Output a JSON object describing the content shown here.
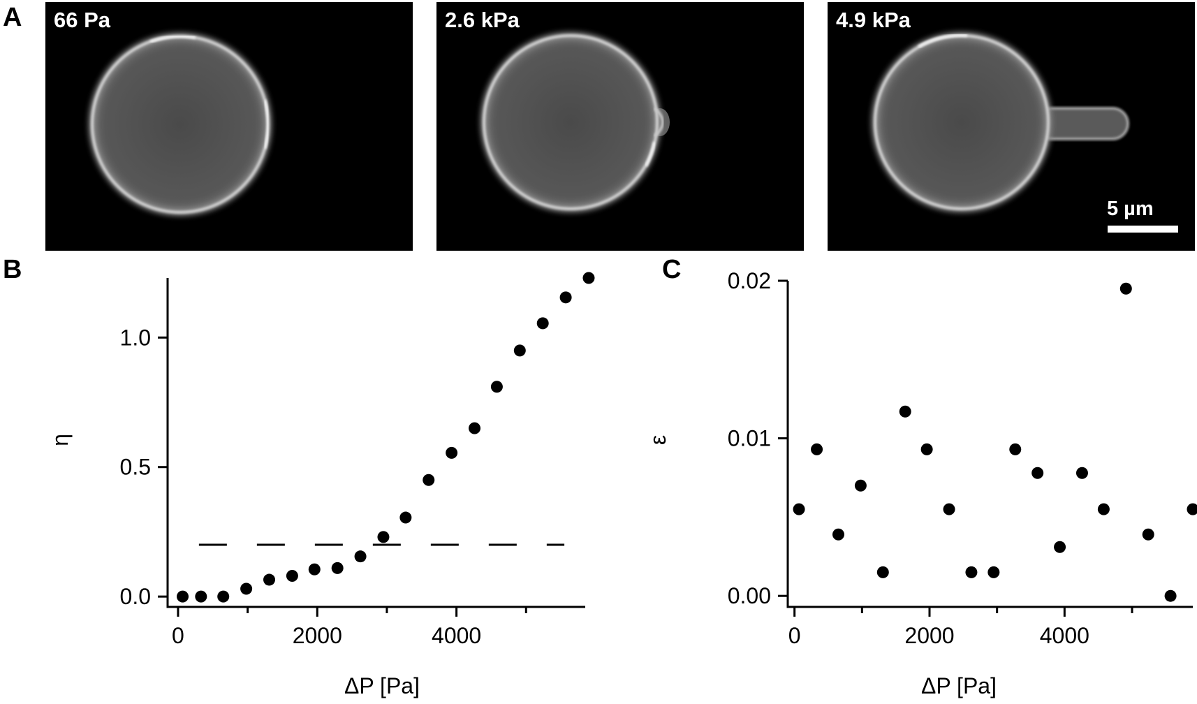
{
  "panel_letters": {
    "a": "A",
    "b": "B",
    "c": "C"
  },
  "micrographs": [
    {
      "label": "66 Pa"
    },
    {
      "label": "2.6 kPa"
    },
    {
      "label": "4.9 kPa"
    }
  ],
  "scale_bar": {
    "label": "5 µm"
  },
  "chart_data": [
    {
      "type": "scatter",
      "panel": "B",
      "xlabel": "ΔP [Pa]",
      "ylabel": "η",
      "xlim": [
        -150,
        5850
      ],
      "ylim": [
        -0.04,
        1.23
      ],
      "xticks": [
        0,
        2000,
        4000
      ],
      "xticks_minor": [
        1000,
        3000,
        5000
      ],
      "yticks": [
        0.0,
        0.5,
        1.0
      ],
      "ytick_labels": [
        "0.0",
        "0.5",
        "1.0"
      ],
      "grid": false,
      "threshold_line": {
        "y": 0.2,
        "x": [
          300,
          5550
        ],
        "style": "dashed"
      },
      "x": [
        66,
        330,
        650,
        980,
        1310,
        1640,
        1960,
        2290,
        2620,
        2950,
        3270,
        3600,
        3930,
        4260,
        4580,
        4910,
        5240,
        5570,
        5900
      ],
      "y": [
        0.0,
        0.0,
        0.0,
        0.03,
        0.065,
        0.08,
        0.105,
        0.11,
        0.155,
        0.23,
        0.305,
        0.45,
        0.555,
        0.65,
        0.81,
        0.95,
        1.055,
        1.155,
        1.23
      ]
    },
    {
      "type": "scatter",
      "panel": "C",
      "xlabel": "ΔP [Pa]",
      "ylabel": "ε",
      "xlim": [
        -100,
        5900
      ],
      "ylim": [
        -0.0007,
        0.02
      ],
      "xticks": [
        0,
        2000,
        4000
      ],
      "xticks_minor": [
        1000,
        3000,
        5000
      ],
      "yticks": [
        0.0,
        0.01,
        0.02
      ],
      "ytick_labels": [
        "0.00",
        "0.01",
        "0.02"
      ],
      "grid": false,
      "x": [
        66,
        330,
        650,
        980,
        1310,
        1640,
        1960,
        2290,
        2620,
        2950,
        3270,
        3600,
        3930,
        4260,
        4580,
        4910,
        5240,
        5570,
        5900
      ],
      "y": [
        0.0055,
        0.0093,
        0.0039,
        0.007,
        0.0015,
        0.0117,
        0.0093,
        0.0055,
        0.0015,
        0.0015,
        0.0093,
        0.0078,
        0.0031,
        0.0078,
        0.0055,
        0.0195,
        0.0039,
        0.0,
        0.0055
      ]
    }
  ]
}
